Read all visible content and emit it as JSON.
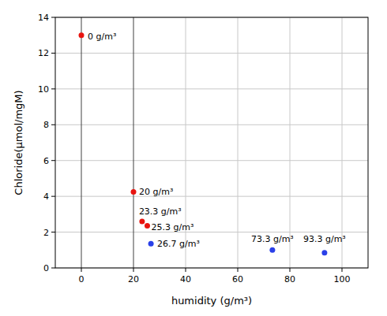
{
  "chart_data": {
    "type": "scatter",
    "x_label": "humidity (g/m³)",
    "y_label": "Chloride(μmol/mgM)",
    "series": [
      {
        "color": "#e8140f",
        "marker": "circle",
        "x": [
          0,
          20,
          23.3,
          25.3
        ],
        "values": [
          13,
          4.25,
          2.6,
          2.35
        ],
        "labels": [
          "0 g/m³",
          "20 g/m³",
          "23.3 g/m³",
          "25.3 g/m³"
        ]
      },
      {
        "color": "#2a40e8",
        "marker": "circle",
        "x": [
          26.7,
          73.3,
          93.3
        ],
        "values": [
          1.35,
          1.0,
          0.85
        ],
        "labels": [
          "26.7 g/m³",
          "73.3 g/m³",
          "93.3 g/m³"
        ]
      }
    ],
    "xlim": [
      -10,
      110
    ],
    "xticks": [
      0,
      20,
      40,
      60,
      80,
      100
    ],
    "ylim": [
      0,
      14
    ],
    "yticks": [
      0,
      2,
      4,
      6,
      8,
      10,
      12,
      14
    ],
    "grid": true
  }
}
